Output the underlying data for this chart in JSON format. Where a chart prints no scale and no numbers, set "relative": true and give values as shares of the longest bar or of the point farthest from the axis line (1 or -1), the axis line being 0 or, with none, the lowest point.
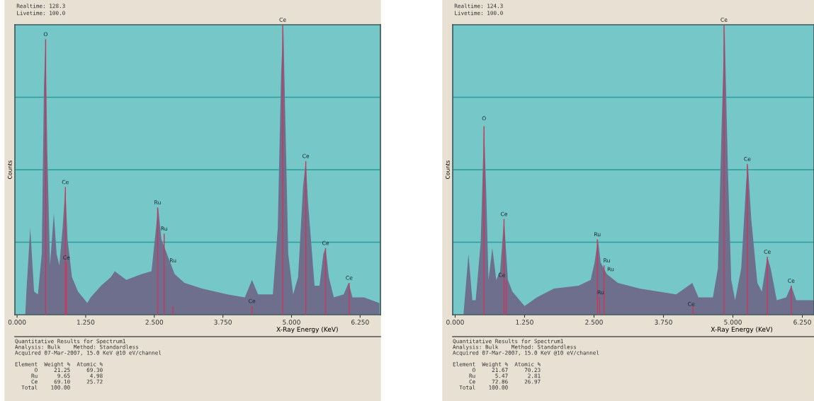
{
  "chart_data": [
    {
      "type": "area",
      "relative": true,
      "xlabel": "X-Ray Energy (KeV)",
      "ylabel": "Counts",
      "ref_lines": [
        {
          "axis": "y",
          "value": 0.25,
          "color": "#2a9c9e"
        },
        {
          "axis": "y",
          "value": 0.5,
          "color": "#2a9c9e"
        },
        {
          "axis": "y",
          "value": 0.75,
          "color": "#2a9c9e"
        }
      ],
      "xlim": [
        -0.04,
        6.62
      ],
      "xticks": [
        {
          "value": 0,
          "label": "0.000"
        },
        {
          "value": 1.25,
          "label": "1.250"
        },
        {
          "value": 2.5,
          "label": "2.500"
        },
        {
          "value": 3.75,
          "label": "3.750"
        },
        {
          "value": 5,
          "label": "5.000"
        },
        {
          "value": 6.25,
          "label": "6.250"
        }
      ],
      "x": [
        0.15,
        0.17,
        0.24,
        0.31,
        0.38,
        0.45,
        0.49,
        0.52,
        0.55,
        0.6,
        0.67,
        0.72,
        0.77,
        0.83,
        0.88,
        0.92,
        1.0,
        1.11,
        1.28,
        1.34,
        1.53,
        1.71,
        1.78,
        1.99,
        2.27,
        2.45,
        2.51,
        2.57,
        2.63,
        2.73,
        2.87,
        3.05,
        3.37,
        3.83,
        4.15,
        4.28,
        4.39,
        4.66,
        4.75,
        4.81,
        4.85,
        4.88,
        4.94,
        5.03,
        5.12,
        5.21,
        5.26,
        5.3,
        5.42,
        5.51,
        5.58,
        5.62,
        5.68,
        5.77,
        5.95,
        6.04,
        6.11,
        6.32,
        6.6
      ],
      "series": [
        {
          "color": "#6e6f8c",
          "values": [
            0,
            0.08,
            0.3,
            0.08,
            0.07,
            0.21,
            0.79,
            0.95,
            0.57,
            0.17,
            0.35,
            0.21,
            0.17,
            0.3,
            0.44,
            0.26,
            0.13,
            0.08,
            0.04,
            0.06,
            0.1,
            0.13,
            0.15,
            0.12,
            0.14,
            0.15,
            0.26,
            0.37,
            0.26,
            0.21,
            0.14,
            0.11,
            0.09,
            0.07,
            0.06,
            0.12,
            0.07,
            0.07,
            0.3,
            0.83,
            1.0,
            0.74,
            0.21,
            0.07,
            0.13,
            0.44,
            0.53,
            0.39,
            0.1,
            0.1,
            0.21,
            0.23,
            0.13,
            0.06,
            0.07,
            0.11,
            0.06,
            0.06,
            0.04
          ]
        },
        {
          "type": "bar",
          "color": "#c8385a",
          "x": [
            0.52,
            0.88,
            0.9,
            2.56,
            2.68,
            2.84,
            4.28,
            4.84,
            5.26,
            5.62,
            6.05
          ],
          "values": [
            0.95,
            0.44,
            0.18,
            0.37,
            0.28,
            0.03,
            0.03,
            1.0,
            0.53,
            0.23,
            0.11
          ]
        }
      ],
      "annotations": [
        {
          "text": "O",
          "x": 0.52,
          "y": 0.95
        },
        {
          "text": "Ce",
          "x": 0.88,
          "y": 0.44
        },
        {
          "text": "Ce",
          "x": 0.9,
          "y": 0.18
        },
        {
          "text": "Ru",
          "x": 2.56,
          "y": 0.37
        },
        {
          "text": "Ru",
          "x": 2.68,
          "y": 0.28
        },
        {
          "text": "Ru",
          "x": 2.84,
          "y": 0.17
        },
        {
          "text": "Ce",
          "x": 4.28,
          "y": 0.03
        },
        {
          "text": "Ce",
          "x": 4.84,
          "y": 1.0
        },
        {
          "text": "Ce",
          "x": 5.26,
          "y": 0.53
        },
        {
          "text": "Ce",
          "x": 5.62,
          "y": 0.23
        },
        {
          "text": "Ce",
          "x": 6.05,
          "y": 0.11
        },
        "Realtime: 128.3",
        "Livetime: 100.0",
        "Quantitative Results for Spectrum1",
        "Analysis: Bulk    Method: Standardless",
        "Acquired 07-Mar-2007, 15.0 KeV @10 eV/channel",
        "Element  Weight %  Atomic %",
        "      O     21.25     69.30",
        "     Ru      9.65      4.98",
        "     Ce     69.10     25.72",
        "  Total    100.00"
      ]
    },
    {
      "type": "area",
      "relative": true,
      "xlabel": "X-Ray Energy (KeV)",
      "ylabel": "Counts",
      "ref_lines": [
        {
          "axis": "y",
          "value": 0.25,
          "color": "#2a9c9e"
        },
        {
          "axis": "y",
          "value": 0.5,
          "color": "#2a9c9e"
        },
        {
          "axis": "y",
          "value": 0.75,
          "color": "#2a9c9e"
        }
      ],
      "xlim": [
        -0.044,
        6.46
      ],
      "xticks": [
        {
          "value": 0,
          "label": "0.000"
        },
        {
          "value": 1.25,
          "label": "1.250"
        },
        {
          "value": 2.5,
          "label": "2.500"
        },
        {
          "value": 3.75,
          "label": "3.750"
        },
        {
          "value": 5,
          "label": "5.000"
        },
        {
          "value": 6.25,
          "label": "6.250"
        }
      ],
      "x": [
        0.15,
        0.24,
        0.31,
        0.37,
        0.46,
        0.52,
        0.56,
        0.6,
        0.67,
        0.74,
        0.81,
        0.88,
        0.95,
        1.03,
        1.25,
        1.47,
        1.78,
        2.22,
        2.44,
        2.51,
        2.57,
        2.62,
        2.73,
        2.93,
        3.32,
        3.98,
        4.27,
        4.38,
        4.64,
        4.73,
        4.8,
        4.85,
        4.91,
        4.97,
        5.04,
        5.15,
        5.24,
        5.27,
        5.33,
        5.44,
        5.52,
        5.62,
        5.68,
        5.79,
        5.96,
        6.05,
        6.14,
        6.46
      ],
      "series": [
        {
          "color": "#6e6f8c",
          "values": [
            0,
            0.21,
            0.05,
            0.05,
            0.25,
            0.65,
            0.42,
            0.12,
            0.23,
            0.12,
            0.15,
            0.33,
            0.12,
            0.08,
            0.03,
            0.06,
            0.09,
            0.1,
            0.12,
            0.18,
            0.26,
            0.18,
            0.14,
            0.11,
            0.09,
            0.07,
            0.11,
            0.06,
            0.06,
            0.16,
            0.67,
            1.0,
            0.5,
            0.12,
            0.05,
            0.16,
            0.46,
            0.52,
            0.33,
            0.11,
            0.08,
            0.2,
            0.16,
            0.05,
            0.06,
            0.1,
            0.05,
            0.05
          ]
        },
        {
          "type": "bar",
          "color": "#c8385a",
          "x": [
            0.52,
            0.88,
            0.92,
            2.56,
            2.6,
            2.68,
            4.28,
            4.84,
            5.26,
            5.62,
            6.05
          ],
          "values": [
            0.65,
            0.33,
            0.12,
            0.26,
            0.06,
            0.17,
            0.03,
            1.0,
            0.52,
            0.2,
            0.1
          ]
        }
      ],
      "annotations": [
        {
          "text": "O",
          "x": 0.52,
          "y": 0.66
        },
        {
          "text": "Ce",
          "x": 0.88,
          "y": 0.33
        },
        {
          "text": "Ce",
          "x": 0.84,
          "y": 0.12
        },
        {
          "text": "Ru",
          "x": 2.56,
          "y": 0.26
        },
        {
          "text": "Ru",
          "x": 2.73,
          "y": 0.17
        },
        {
          "text": "Ru",
          "x": 2.8,
          "y": 0.14
        },
        {
          "text": "Ru",
          "x": 2.62,
          "y": 0.06
        },
        {
          "text": "Ce",
          "x": 4.25,
          "y": 0.02
        },
        {
          "text": "Ce",
          "x": 4.84,
          "y": 1.0
        },
        {
          "text": "Ce",
          "x": 5.26,
          "y": 0.52
        },
        {
          "text": "Ce",
          "x": 5.62,
          "y": 0.2
        },
        {
          "text": "Ce",
          "x": 6.05,
          "y": 0.1
        },
        "Realtime: 124.3",
        "Livetime: 100.0",
        "Quantitative Results for Spectrum1",
        "Analysis: Bulk    Method: Standardless",
        "Acquired 07-Mar-2007, 15.0 KeV @10 eV/channel",
        "Element  Weight %  Atomic %",
        "      O     21.67     70.23",
        "     Ru      5.47      2.81",
        "     Ce     72.86     26.97",
        "  Total    100.00"
      ]
    }
  ]
}
